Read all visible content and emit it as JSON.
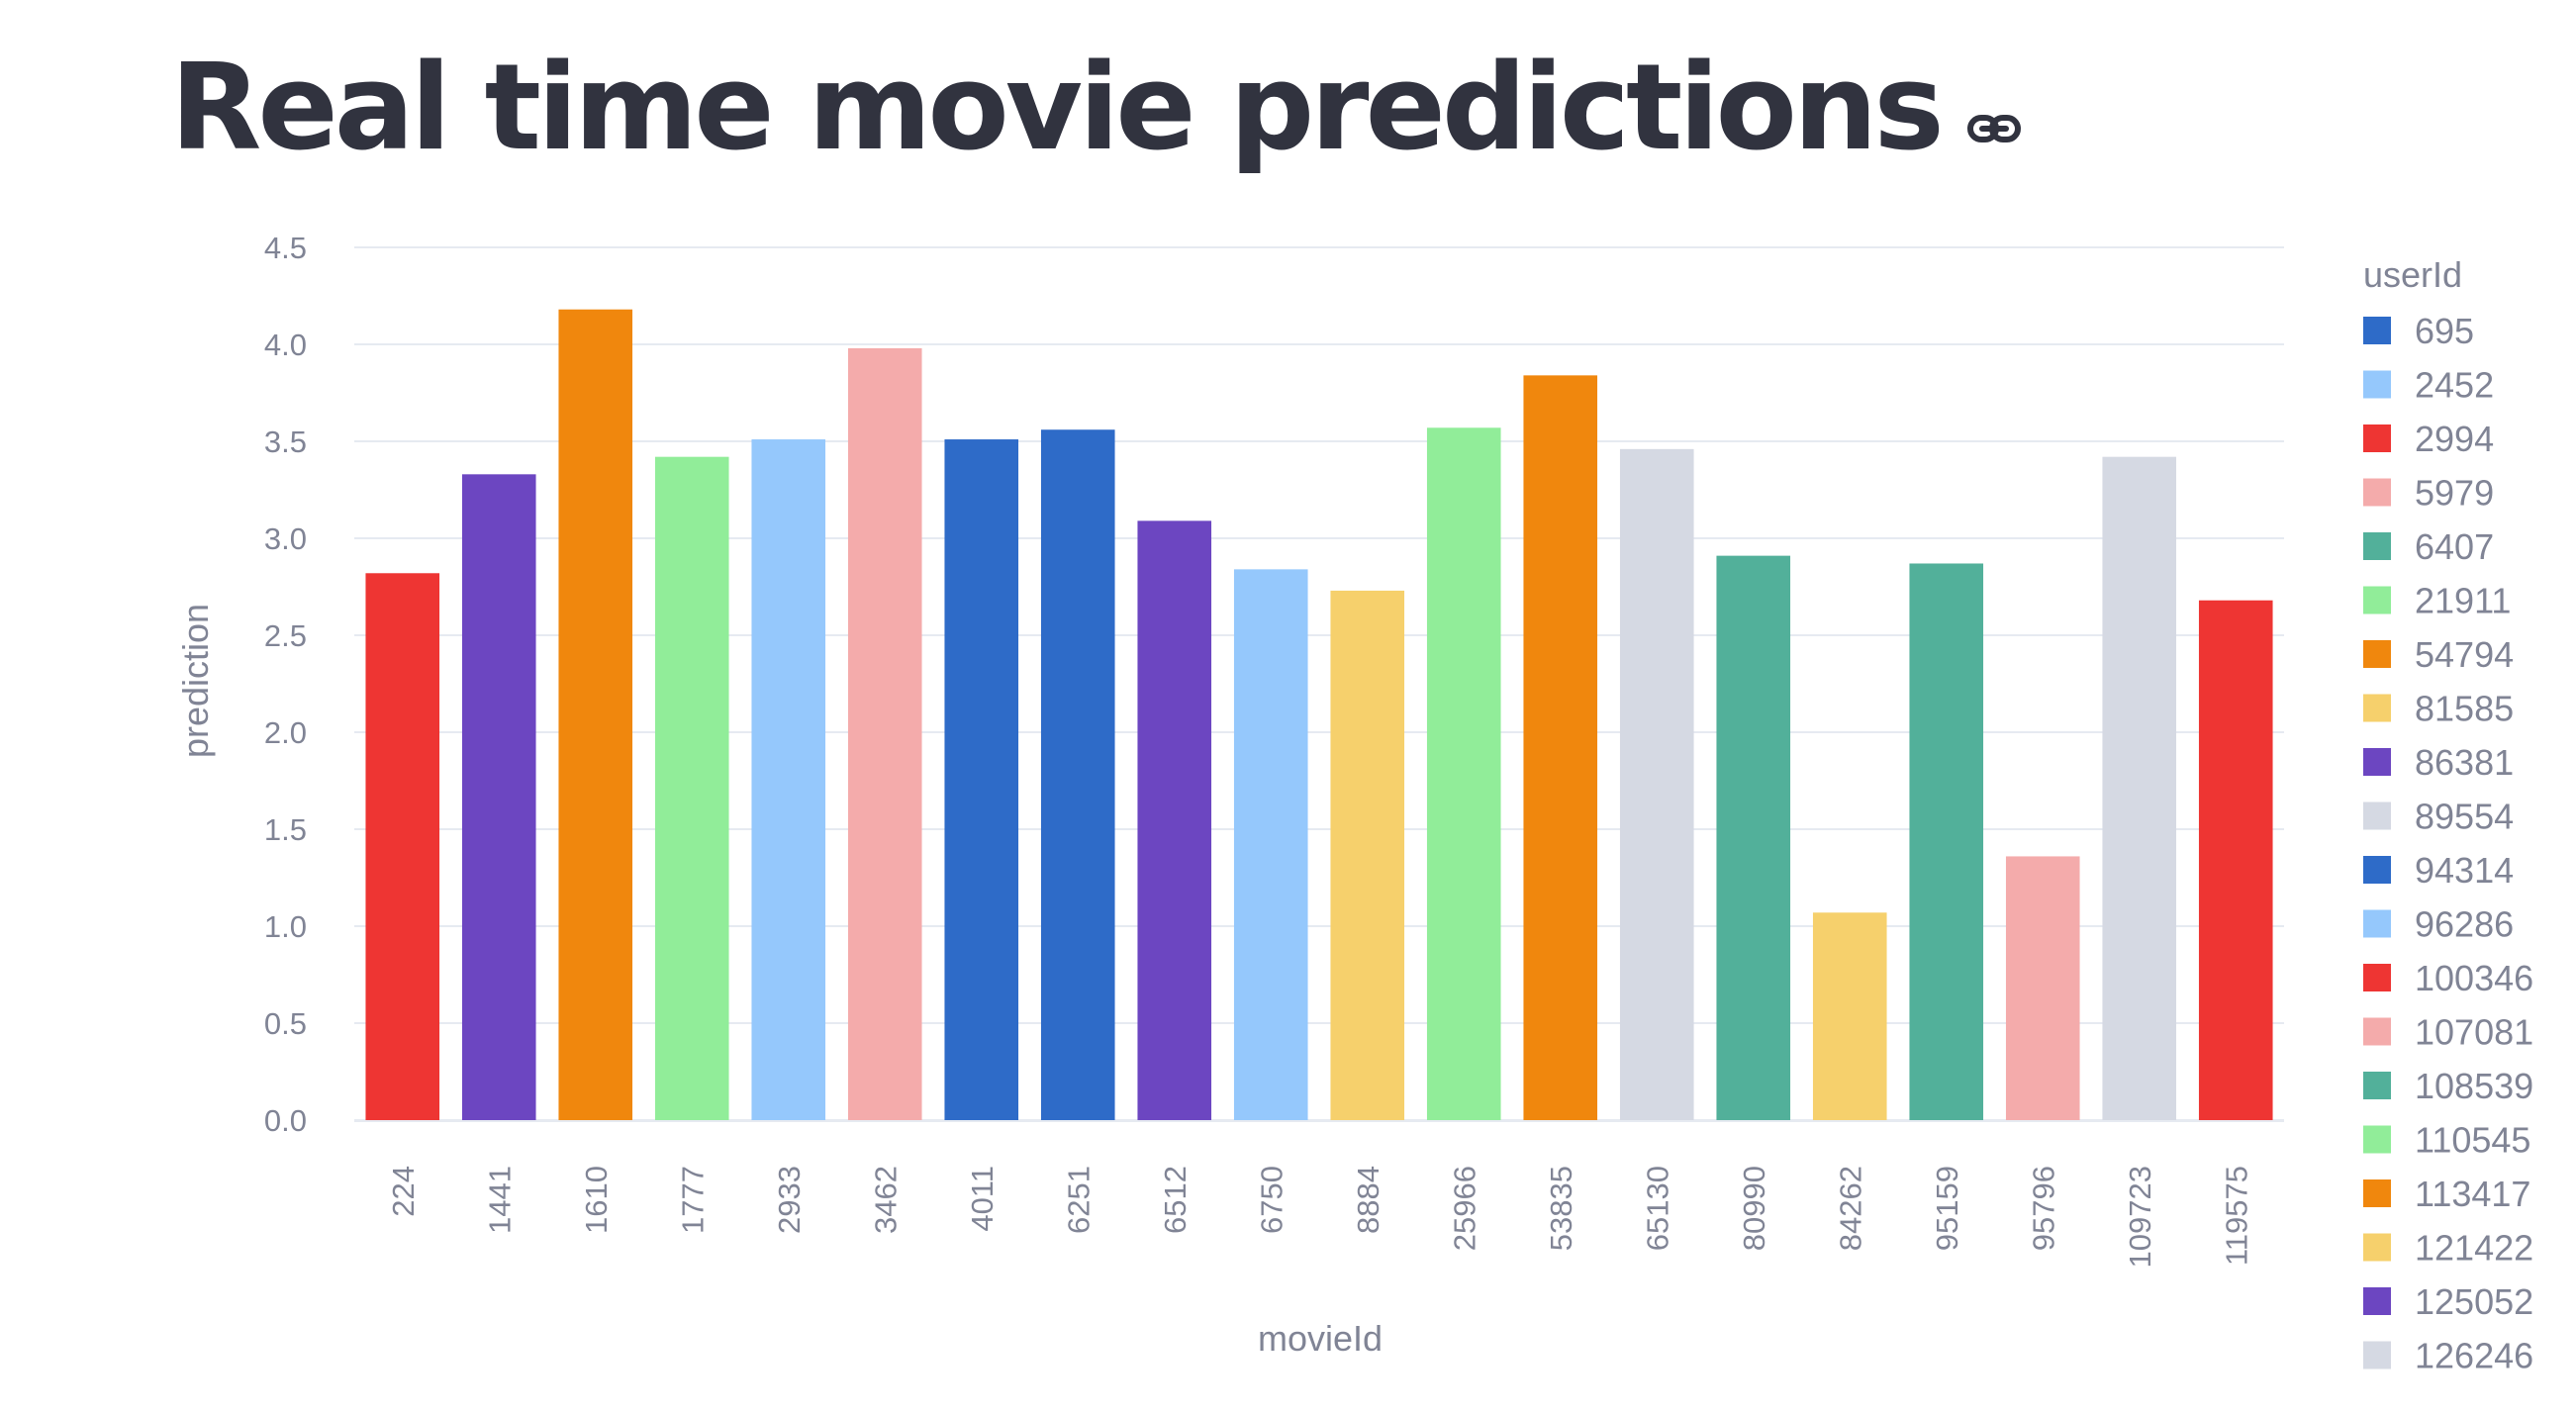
{
  "page": {
    "title": "Real time movie predictions",
    "anchor_icon": "link-icon"
  },
  "colors": {
    "title": "#31333f",
    "axis_text": "#808495",
    "grid": "#e6eaf1"
  },
  "chart_data": {
    "type": "bar",
    "xlabel": "movieId",
    "ylabel": "prediction",
    "ylim": [
      0,
      4.5
    ],
    "yticks": [
      "0.0",
      "0.5",
      "1.0",
      "1.5",
      "2.0",
      "2.5",
      "3.0",
      "3.5",
      "4.0",
      "4.5"
    ],
    "grid": true,
    "legend": {
      "title": "userId",
      "position": "right",
      "entries": [
        {
          "label": "695",
          "color": "#2e6bc8"
        },
        {
          "label": "2452",
          "color": "#95c8fc"
        },
        {
          "label": "2994",
          "color": "#ee3533"
        },
        {
          "label": "5979",
          "color": "#f4abab"
        },
        {
          "label": "6407",
          "color": "#52b09a"
        },
        {
          "label": "21911",
          "color": "#91ed99"
        },
        {
          "label": "54794",
          "color": "#f0870d"
        },
        {
          "label": "81585",
          "color": "#f6d06c"
        },
        {
          "label": "86381",
          "color": "#6c46c1"
        },
        {
          "label": "89554",
          "color": "#d5d9e3"
        },
        {
          "label": "94314",
          "color": "#2e6bc8"
        },
        {
          "label": "96286",
          "color": "#95c8fc"
        },
        {
          "label": "100346",
          "color": "#ee3533"
        },
        {
          "label": "107081",
          "color": "#f4abab"
        },
        {
          "label": "108539",
          "color": "#52b09a"
        },
        {
          "label": "110545",
          "color": "#91ed99"
        },
        {
          "label": "113417",
          "color": "#f0870d"
        },
        {
          "label": "121422",
          "color": "#f6d06c"
        },
        {
          "label": "125052",
          "color": "#6c46c1"
        },
        {
          "label": "126246",
          "color": "#d5d9e3"
        }
      ]
    },
    "categories": [
      "224",
      "1441",
      "1610",
      "1777",
      "2933",
      "3462",
      "4011",
      "6251",
      "6512",
      "6750",
      "8884",
      "25966",
      "53835",
      "65130",
      "80990",
      "84262",
      "95159",
      "95796",
      "109723",
      "119575"
    ],
    "values": [
      2.82,
      3.33,
      4.18,
      3.42,
      3.51,
      3.98,
      3.51,
      3.56,
      3.09,
      2.84,
      2.73,
      3.57,
      3.84,
      3.46,
      2.91,
      1.07,
      2.87,
      1.36,
      3.42,
      2.68
    ],
    "bar_colors": [
      "#ee3533",
      "#6c46c1",
      "#f0870d",
      "#91ed99",
      "#95c8fc",
      "#f4abab",
      "#2e6bc8",
      "#2e6bc8",
      "#6c46c1",
      "#95c8fc",
      "#f6d06c",
      "#91ed99",
      "#f0870d",
      "#d5d9e3",
      "#52b09a",
      "#f6d06c",
      "#52b09a",
      "#f4abab",
      "#d5d9e3",
      "#ee3533"
    ]
  }
}
